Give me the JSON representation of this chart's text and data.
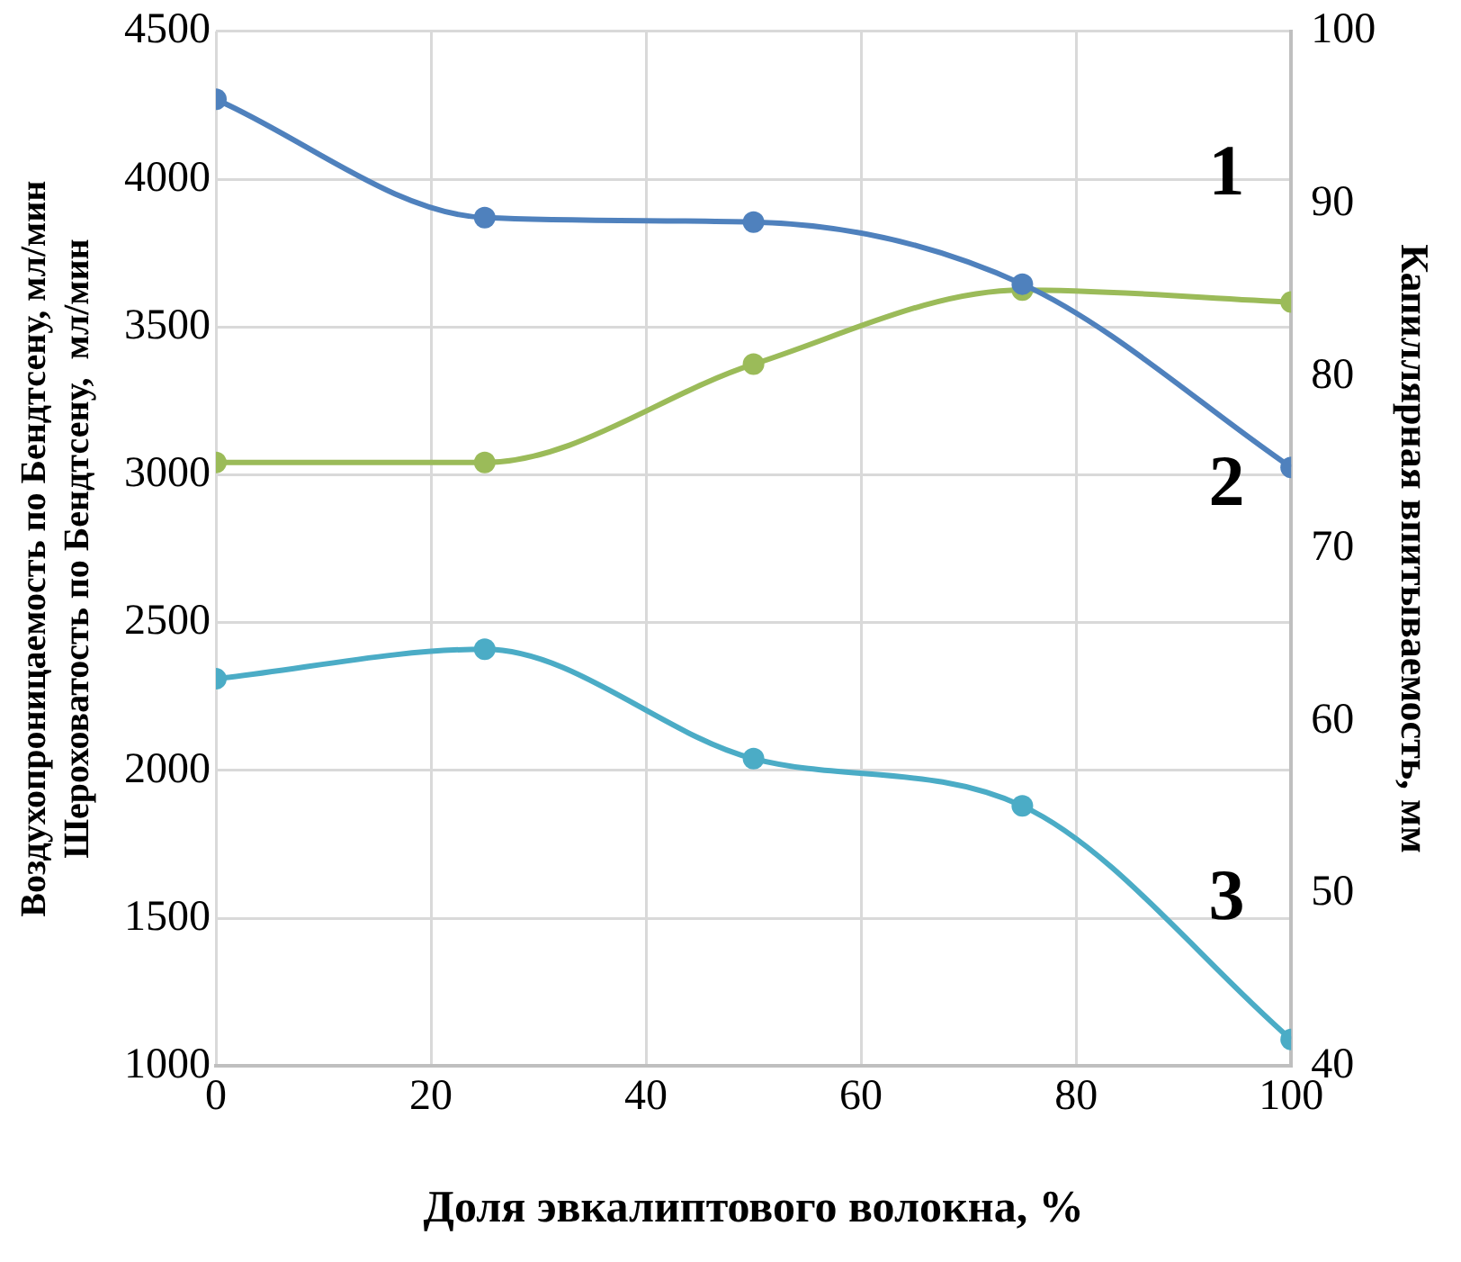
{
  "chart_data": {
    "type": "line",
    "xlabel": "Доля эвкалиптового волокна, %",
    "ylabel": "Воздухопроницаемость по Бендтсену, мл/мин\nШероховатость по Бендтсену,  мл/мин",
    "y2label": "Капиллярная впитываемость, мм",
    "x": [
      0,
      25,
      50,
      75,
      100
    ],
    "series": [
      {
        "color": "#4f81bd",
        "values": [
          4270,
          3870,
          3855,
          3645,
          3025
        ]
      },
      {
        "color": "#9bbb59",
        "values": [
          75.0,
          75.0,
          80.7,
          85.0,
          84.3
        ],
        "axis": "y2"
      },
      {
        "color": "#4bacc6",
        "values": [
          2310,
          2410,
          2040,
          1880,
          1090
        ]
      }
    ],
    "xlim": [
      0,
      100
    ],
    "xticks": [
      0,
      20,
      40,
      60,
      80,
      100
    ],
    "ylim": [
      1000,
      4500
    ],
    "yticks": [
      1000,
      1500,
      2000,
      2500,
      3000,
      3500,
      4000,
      4500
    ],
    "y2lim": [
      40,
      100
    ],
    "y2ticks": [
      40,
      50,
      60,
      70,
      80,
      90,
      100
    ],
    "annotations": [
      "1",
      "2",
      "3"
    ],
    "grid": true,
    "legend": false,
    "marker": "circle",
    "line_style": "solid"
  }
}
